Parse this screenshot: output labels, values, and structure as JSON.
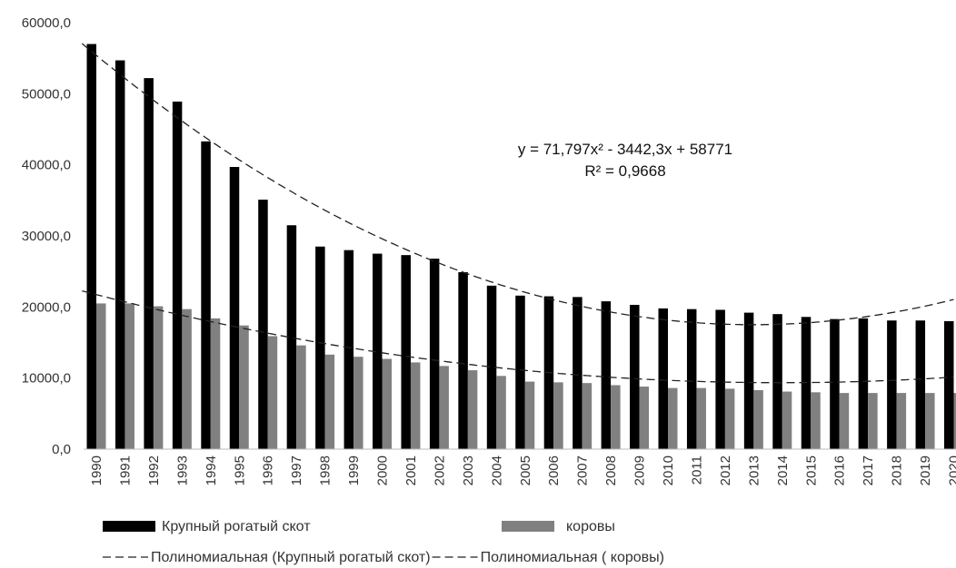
{
  "chart_data": {
    "type": "bar",
    "categories": [
      "1990",
      "1991",
      "1992",
      "1993",
      "1994",
      "1995",
      "1996",
      "1997",
      "1998",
      "1999",
      "2000",
      "2001",
      "2002",
      "2003",
      "2004",
      "2005",
      "2006",
      "2007",
      "2008",
      "2009",
      "2010",
      "2011",
      "2012",
      "2013",
      "2014",
      "2015",
      "2016",
      "2017",
      "2018",
      "2019",
      "2020"
    ],
    "series": [
      {
        "name": "Крупный рогатый скот",
        "color": "#000000",
        "values": [
          57000,
          54700,
          52200,
          48900,
          43300,
          39700,
          35100,
          31500,
          28500,
          28000,
          27500,
          27300,
          26800,
          24900,
          23000,
          21600,
          21500,
          21400,
          20800,
          20300,
          19800,
          19700,
          19600,
          19200,
          19000,
          18600,
          18300,
          18400,
          18100,
          18100,
          18000
        ]
      },
      {
        "name": "коровы",
        "color": "#808080",
        "values": [
          20500,
          20500,
          20100,
          19700,
          18400,
          17400,
          15900,
          14600,
          13300,
          13000,
          12700,
          12200,
          11700,
          11100,
          10300,
          9500,
          9400,
          9300,
          9000,
          8800,
          8600,
          8600,
          8500,
          8300,
          8100,
          8000,
          7900,
          7900,
          7900,
          7900,
          7900
        ]
      }
    ],
    "trendlines": [
      {
        "name": "Полиномиальная (Крупный рогатый скот)",
        "type": "polynomial",
        "order": 2,
        "coefficients": [
          71.797,
          -3442.3,
          58771
        ]
      },
      {
        "name": "Полиномиальная (  коровы)",
        "type": "polynomial",
        "order": 2,
        "coefficients": [
          21.6,
          -1078,
          22800
        ]
      }
    ],
    "annotation": {
      "equation": "y = 71,797x² - 3442,3x + 58771",
      "r2": "R² = 0,9668"
    },
    "y_tick_labels": [
      "0,0",
      "10000,0",
      "20000,0",
      "30000,0",
      "40000,0",
      "50000,0",
      "60000,0"
    ],
    "ylim": [
      0,
      60000
    ],
    "y_ticks": [
      0,
      10000,
      20000,
      30000,
      40000,
      50000,
      60000
    ],
    "grid": false,
    "legend_position": "bottom",
    "legend": {
      "bar_items": [
        "Крупный рогатый скот",
        "коровы"
      ],
      "trend_items": [
        "Полиномиальная (Крупный рогатый скот)",
        "Полиномиальная (  коровы)"
      ]
    }
  }
}
